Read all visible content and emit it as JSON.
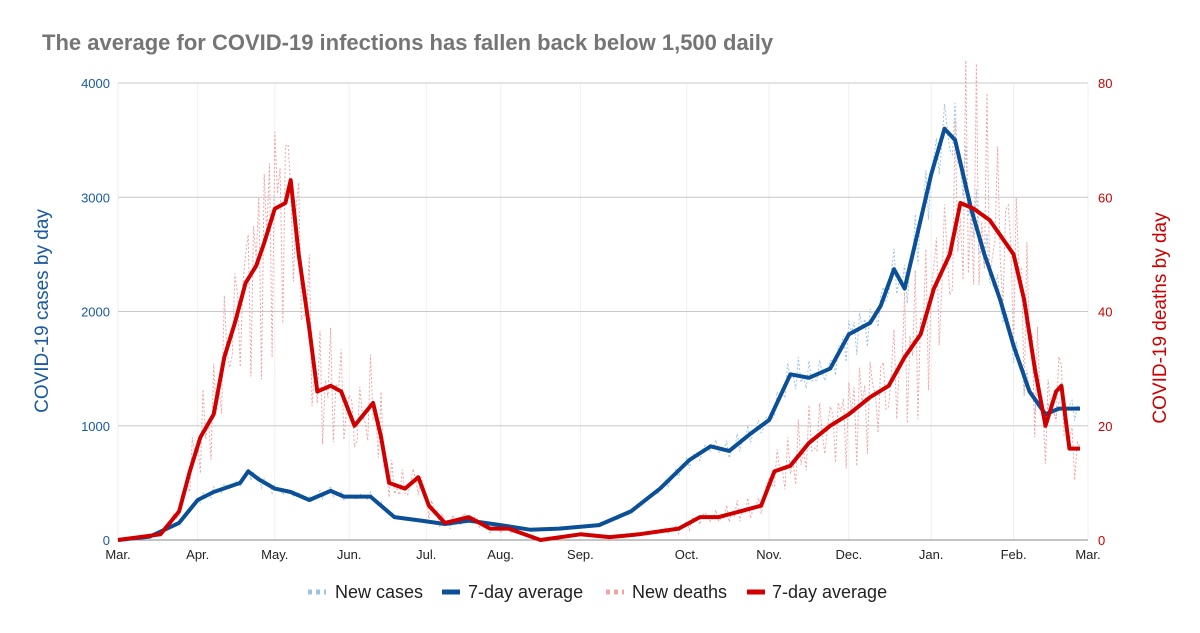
{
  "chart_data": {
    "type": "line",
    "title": "The average for COVID-19 infections has fallen back below 1,500 daily",
    "ylabel_left": "COVID-19 cases by day",
    "ylabel_right": "COVID-19 deaths by day",
    "ylim_left": [
      0,
      4000
    ],
    "ylim_right": [
      0,
      80
    ],
    "yticks_left": [
      "0",
      "1000",
      "2000",
      "3000",
      "4000"
    ],
    "yticks_right": [
      "0",
      "20",
      "40",
      "60",
      "80"
    ],
    "xlim": [
      0,
      365
    ],
    "xticks": [
      {
        "label": "Mar.",
        "day": 0
      },
      {
        "label": "Apr.",
        "day": 30
      },
      {
        "label": "May.",
        "day": 59
      },
      {
        "label": "Jun.",
        "day": 87
      },
      {
        "label": "Jul.",
        "day": 116
      },
      {
        "label": "Aug.",
        "day": 144
      },
      {
        "label": "Sep.",
        "day": 174
      },
      {
        "label": "Oct.",
        "day": 214
      },
      {
        "label": "Nov.",
        "day": 245
      },
      {
        "label": "Dec.",
        "day": 275
      },
      {
        "label": "Jan.",
        "day": 306
      },
      {
        "label": "Feb.",
        "day": 337
      },
      {
        "label": "Mar.",
        "day": 365
      }
    ],
    "grid": true,
    "legend_position": "bottom",
    "colors": {
      "cases": "#9cc3e6",
      "cases_avg": "#0b4f96",
      "deaths": "#f2a3a3",
      "deaths_avg": "#d10000",
      "left_axis": "#1a5aa0",
      "right_axis": "#cc0000"
    },
    "legend": [
      "New cases",
      "7-day average",
      "New deaths",
      "7-day average"
    ],
    "series": [
      {
        "name": "7-day average (cases)",
        "axis": "left",
        "x": [
          0,
          12,
          23,
          30,
          36,
          46,
          49,
          53,
          59,
          65,
          72,
          80,
          85,
          95,
          104,
          114,
          123,
          132,
          144,
          155,
          166,
          181,
          193,
          204,
          215,
          223,
          230,
          238,
          245,
          253,
          260,
          268,
          275,
          283,
          287,
          292,
          296,
          300,
          306,
          311,
          315,
          321,
          326,
          332,
          337,
          343,
          349,
          354,
          362
        ],
        "y": [
          0,
          30,
          150,
          350,
          420,
          500,
          600,
          530,
          450,
          420,
          350,
          430,
          380,
          380,
          200,
          170,
          140,
          170,
          130,
          90,
          100,
          130,
          250,
          450,
          700,
          820,
          780,
          930,
          1050,
          1450,
          1420,
          1500,
          1800,
          1900,
          2050,
          2370,
          2200,
          2600,
          3200,
          3600,
          3500,
          2900,
          2500,
          2100,
          1700,
          1300,
          1100,
          1150,
          1150
        ]
      },
      {
        "name": "7-day average (deaths)",
        "axis": "right",
        "x": [
          0,
          16,
          23,
          27,
          31,
          36,
          40,
          44,
          48,
          52,
          55,
          59,
          63,
          65,
          68,
          72,
          75,
          80,
          84,
          89,
          96,
          99,
          102,
          108,
          113,
          117,
          123,
          132,
          140,
          147,
          159,
          174,
          185,
          196,
          211,
          219,
          226,
          234,
          242,
          247,
          253,
          260,
          268,
          275,
          283,
          290,
          296,
          302,
          307,
          313,
          317,
          322,
          328,
          334,
          337,
          341,
          345,
          349,
          353,
          355,
          358,
          362
        ],
        "y": [
          0,
          1,
          5,
          12,
          18,
          22,
          32,
          38,
          45,
          48,
          52,
          58,
          59,
          63,
          50,
          37,
          26,
          27,
          26,
          20,
          24,
          18,
          10,
          9,
          11,
          6,
          3,
          4,
          2,
          2,
          0,
          1,
          0.5,
          1,
          2,
          4,
          4,
          5,
          6,
          12,
          13,
          17,
          20,
          22,
          25,
          27,
          32,
          36,
          44,
          50,
          59,
          58,
          56,
          52,
          50,
          42,
          30,
          20,
          26,
          27,
          16,
          16
        ]
      }
    ]
  }
}
